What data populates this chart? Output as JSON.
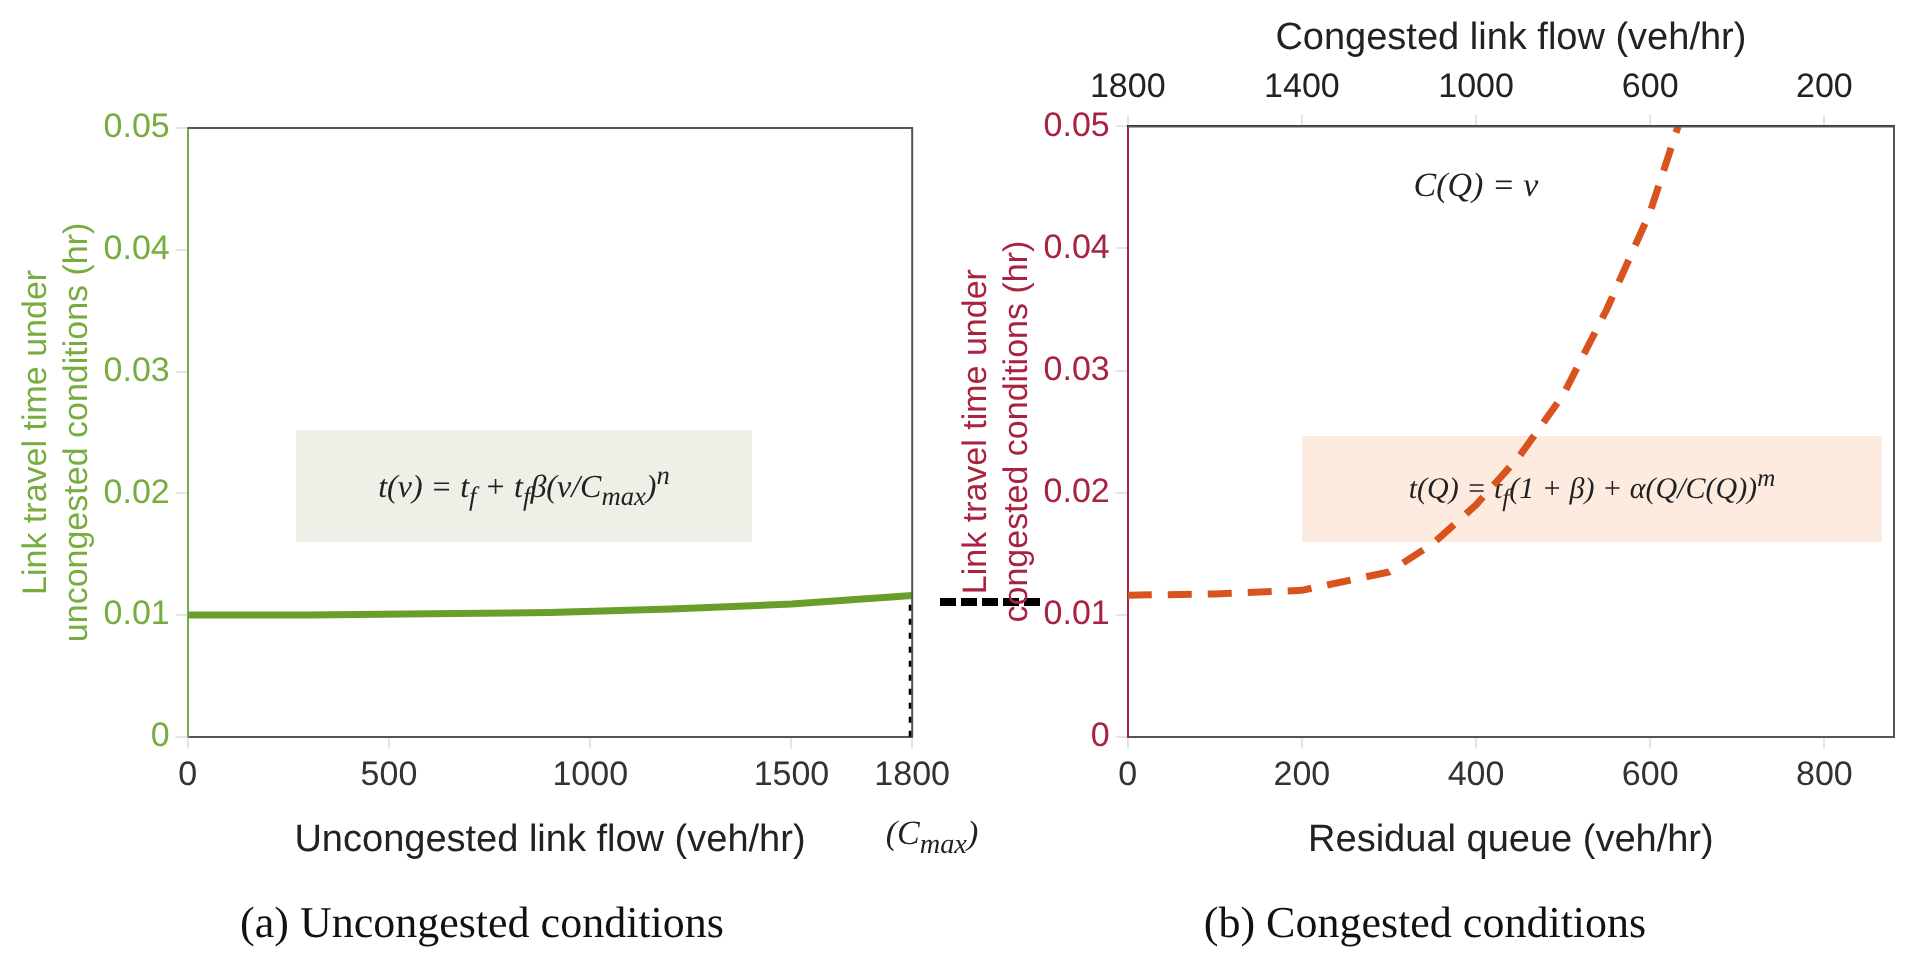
{
  "chart_data": [
    {
      "type": "line",
      "title": "(a) Uncongested conditions",
      "xlabel": "Uncongested link flow (veh/hr)",
      "ylabel": "Link travel time under uncongested conditions (hr)",
      "annotations": [
        "t(v) = t$_{f}$ + t$_{f}$β(v/C$_{max}$)$^{n}$",
        "(C$_{max}$)"
      ],
      "series": [
        {
          "color": "#6a9e2a",
          "x": [
            0,
            300,
            600,
            900,
            1200,
            1500,
            1800
          ],
          "values": [
            0.01,
            0.01,
            0.0101,
            0.0102,
            0.0105,
            0.0109,
            0.0116
          ]
        },
        {
          "color": "#000000",
          "line_style": "dotted",
          "x": [
            1800,
            1800
          ],
          "values": [
            0,
            0.0116
          ]
        }
      ],
      "xlim": [
        0,
        1800
      ],
      "xticks": [
        0,
        500,
        1000,
        1500,
        1800
      ],
      "ylim": [
        0,
        0.05
      ],
      "yticks": [
        0,
        0.01,
        0.02,
        0.03,
        0.04,
        0.05
      ],
      "legend": false
    },
    {
      "type": "line",
      "title": "(b) Congested conditions",
      "xlabel": "Residual queue (veh/hr)",
      "x2label": "Congested link flow (veh/hr)",
      "ylabel": "Link travel time under congested conditions (hr)",
      "annotations": [
        "C(Q) = v",
        "t(Q) = t$_{f}$(1 + β) + α(Q/C(Q))$^{m}$"
      ],
      "series": [
        {
          "color": "#d9531e",
          "line_style": "dashed",
          "x": [
            0,
            100,
            200,
            300,
            350,
            400,
            450,
            500,
            550,
            600,
            632
          ],
          "values": [
            0.0116,
            0.0117,
            0.012,
            0.0135,
            0.0158,
            0.019,
            0.023,
            0.028,
            0.035,
            0.043,
            0.05
          ]
        }
      ],
      "xlim": [
        0,
        880
      ],
      "xticks": [
        0,
        200,
        400,
        600,
        800
      ],
      "x2lim": [
        1800,
        40
      ],
      "x2ticks": [
        1800,
        1400,
        1000,
        600,
        200
      ],
      "ylim": [
        0,
        0.05
      ],
      "yticks": [
        0,
        0.01,
        0.02,
        0.03,
        0.04,
        0.05
      ],
      "legend": false
    }
  ]
}
